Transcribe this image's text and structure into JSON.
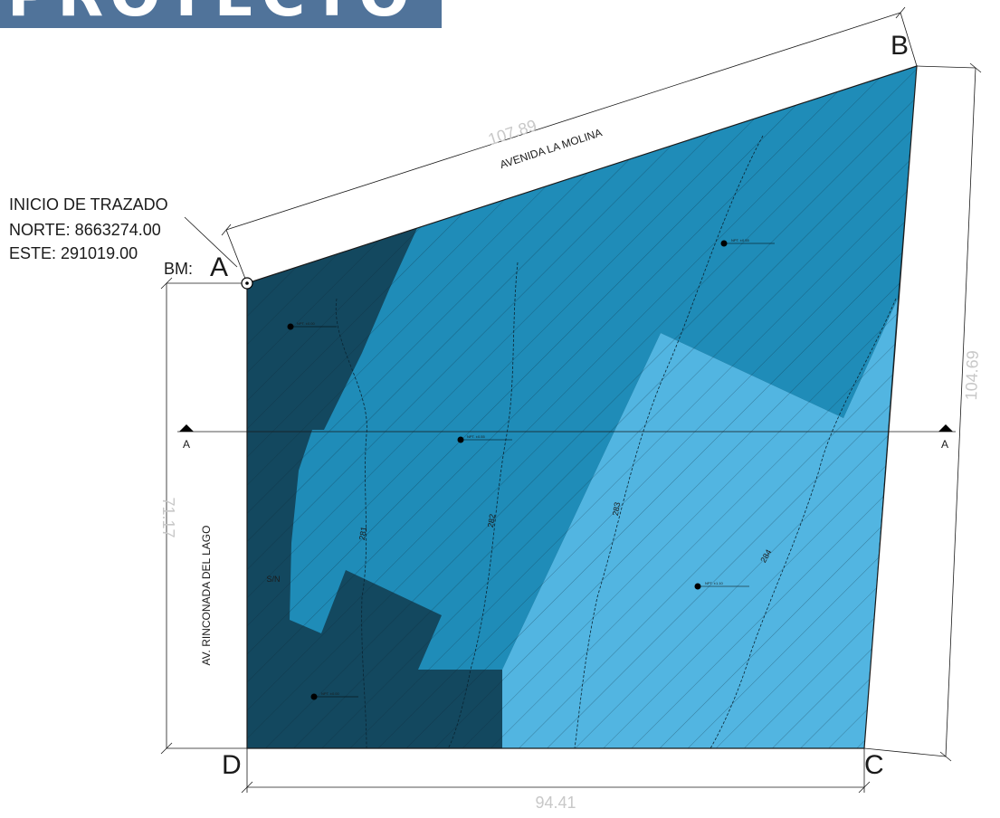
{
  "banner": {
    "text": "PROYECTO"
  },
  "start_info": {
    "title": "INICIO DE TRAZADO",
    "north": "NORTE: 8663274.00",
    "east": "ESTE: 291019.00",
    "bm": "BM:"
  },
  "vertices": {
    "a": "A",
    "b": "B",
    "c": "C",
    "d": "D"
  },
  "dimensions": {
    "ab": "107.89",
    "bc": "104.69",
    "cd": "94.41",
    "da": "71.17"
  },
  "streets": {
    "north": "AVENIDA LA MOLINA",
    "west": "AV. RINCONADA DEL LAGO"
  },
  "section": {
    "left": "A",
    "right": "A"
  },
  "contours": [
    "281",
    "282",
    "283",
    "284"
  ],
  "zone_label": "S/N",
  "level_marks": [
    "NPT. ±0.00",
    "NPT. ±0.55",
    "NPT. ±0.55",
    "NPT. ±1.10",
    "NPT. ±0.00"
  ],
  "colors": {
    "zone_dark": "#13485f",
    "zone_mid": "#1f8cb8",
    "zone_light": "#52b5e1",
    "banner": "#50739a",
    "dimension_text": "#c8c8c8"
  }
}
